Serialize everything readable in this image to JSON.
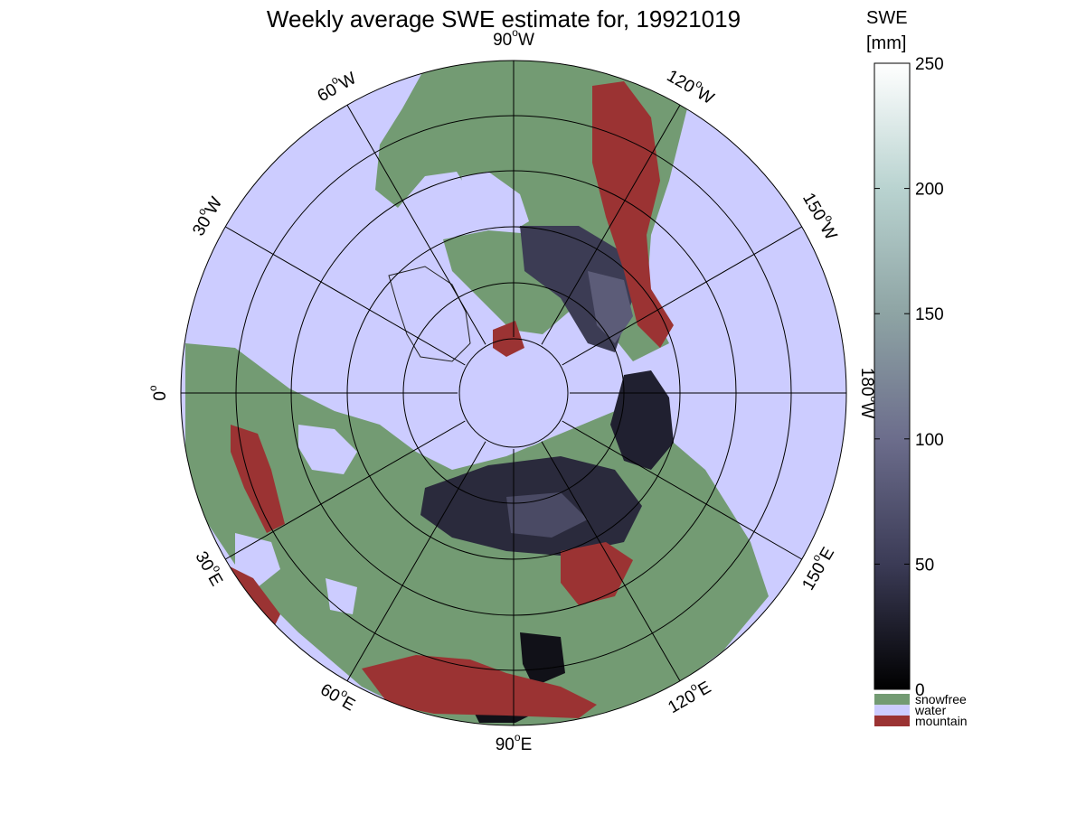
{
  "title": "Weekly average SWE estimate for, 19921019",
  "colorbar": {
    "title_line1": "SWE",
    "title_line2": "[mm]",
    "range": [
      0,
      250
    ],
    "ticks": [
      {
        "value": 0,
        "label": "0"
      },
      {
        "value": 50,
        "label": "50"
      },
      {
        "value": 100,
        "label": "100"
      },
      {
        "value": 150,
        "label": "150"
      },
      {
        "value": 200,
        "label": "200"
      },
      {
        "value": 250,
        "label": "250"
      }
    ],
    "gradient_colors": [
      "#000000",
      "#3b3b56",
      "#6c6d8c",
      "#8ea4a4",
      "#b9d3d0",
      "#ffffff"
    ],
    "categories": [
      {
        "label": "snowfree",
        "color": "#739b73"
      },
      {
        "label": "water",
        "color": "#ccccff"
      },
      {
        "label": "mountain",
        "color": "#9b3333"
      }
    ]
  },
  "meridian_labels": [
    {
      "text": "90",
      "dir": "W"
    },
    {
      "text": "120",
      "dir": "W"
    },
    {
      "text": "150",
      "dir": "W"
    },
    {
      "text": "180",
      "dir": "W"
    },
    {
      "text": "150",
      "dir": "E"
    },
    {
      "text": "120",
      "dir": "E"
    },
    {
      "text": "90",
      "dir": "E"
    },
    {
      "text": "60",
      "dir": "E"
    },
    {
      "text": "30",
      "dir": "E"
    },
    {
      "text": "0",
      "dir": ""
    },
    {
      "text": "30",
      "dir": "W"
    },
    {
      "text": "60",
      "dir": "W"
    }
  ],
  "colors": {
    "water": "#ccccff",
    "land": "#739b73",
    "mountain": "#9b3333",
    "snow_dark": "#202030",
    "snow_mid": "#4a4a64"
  }
}
